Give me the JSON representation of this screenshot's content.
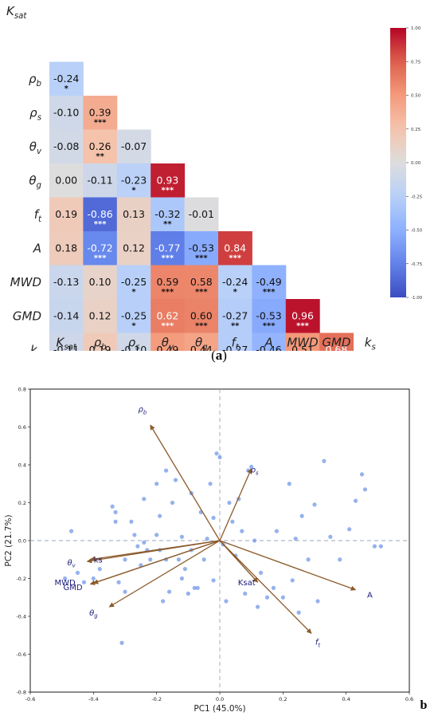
{
  "chart_data": [
    {
      "type": "heatmap",
      "panel_label": "(a)",
      "variables": [
        "Ksat",
        "ρb",
        "ρs",
        "θv",
        "θg",
        "ft",
        "A",
        "MWD",
        "GMD",
        "ks"
      ],
      "labels": [
        {
          "base": "K",
          "sub": "sat"
        },
        {
          "base": "ρ",
          "sub": "b"
        },
        {
          "base": "ρ",
          "sub": "s"
        },
        {
          "base": "θ",
          "sub": "v"
        },
        {
          "base": "θ",
          "sub": "g"
        },
        {
          "base": "f",
          "sub": "t"
        },
        {
          "base": "A",
          "sub": ""
        },
        {
          "base": "MWD",
          "sub": ""
        },
        {
          "base": "GMD",
          "sub": ""
        },
        {
          "base": "k",
          "sub": "s"
        }
      ],
      "lower_triangle": [
        [],
        [
          -0.24
        ],
        [
          -0.1,
          0.39
        ],
        [
          -0.08,
          0.26,
          -0.07
        ],
        [
          -0.0,
          -0.11,
          -0.23,
          0.93
        ],
        [
          0.19,
          -0.86,
          0.13,
          -0.32,
          -0.01
        ],
        [
          0.18,
          -0.72,
          0.12,
          -0.77,
          -0.53,
          0.84
        ],
        [
          -0.13,
          0.1,
          -0.25,
          0.59,
          0.58,
          -0.24,
          -0.49
        ],
        [
          -0.14,
          0.12,
          -0.25,
          0.62,
          0.6,
          -0.27,
          -0.53,
          0.96
        ],
        [
          -0.11,
          0.19,
          -0.1,
          0.49,
          0.44,
          -0.27,
          -0.46,
          0.51,
          0.68
        ]
      ],
      "significance": [
        [],
        [
          "*"
        ],
        [
          "",
          "***"
        ],
        [
          "",
          "**",
          ""
        ],
        [
          "",
          "",
          "*",
          "***"
        ],
        [
          "",
          "***",
          "",
          "**",
          ""
        ],
        [
          "",
          "***",
          "",
          "***",
          "***",
          "***"
        ],
        [
          "",
          "",
          "*",
          "***",
          "***",
          "*",
          "***"
        ],
        [
          "",
          "",
          "*",
          "***",
          "***",
          "**",
          "***",
          "***"
        ],
        [
          "",
          "",
          "",
          "***",
          "***",
          "**",
          "***",
          "***",
          "***"
        ]
      ],
      "colorbar": {
        "range": [
          -1.0,
          1.0
        ],
        "ticks": [
          "1.00",
          "0.75",
          "0.50",
          "0.25",
          "0.00",
          "-0.25",
          "-0.50",
          "-0.75",
          "-1.00"
        ],
        "colormap": "coolwarm",
        "low_color": "#3b4cc0",
        "mid_color": "#dddddd",
        "high_color": "#b40426"
      }
    },
    {
      "type": "scatter",
      "subtype": "PCA biplot",
      "panel_label": "(b)",
      "xlabel": "PC1 (45.0%)",
      "ylabel": "PC2 (21.7%)",
      "xlim": [
        -0.6,
        0.6
      ],
      "ylim": [
        -0.8,
        0.8
      ],
      "xticks": [
        "-0.6",
        "-0.4",
        "-0.2",
        "0.0",
        "0.2",
        "0.4",
        "0.6"
      ],
      "yticks": [
        "0.8",
        "0.6",
        "0.4",
        "0.2",
        "0.0",
        "-0.2",
        "-0.4",
        "-0.6",
        "-0.8"
      ],
      "point_color": "#7b9fe8",
      "arrow_color": "#8b5a2b",
      "label_color": "#1a1a7a",
      "loadings": [
        {
          "name": "ρb",
          "base": "ρ",
          "sub": "b",
          "x": -0.22,
          "y": 0.61,
          "lx": -0.245,
          "ly": 0.68,
          "style": "italic"
        },
        {
          "name": "ρs",
          "base": "ρ",
          "sub": "s",
          "x": 0.1,
          "y": 0.38,
          "lx": 0.11,
          "ly": 0.36,
          "style": "italic"
        },
        {
          "name": "θv",
          "base": "θ",
          "sub": "v",
          "x": -0.42,
          "y": -0.11,
          "lx": -0.47,
          "ly": -0.13,
          "style": "italic"
        },
        {
          "name": "ks",
          "base": "ks",
          "sub": "",
          "x": -0.41,
          "y": -0.1,
          "lx": -0.385,
          "ly": -0.115,
          "style": "normal"
        },
        {
          "name": "MWD",
          "base": "MWD",
          "sub": "",
          "x": -0.41,
          "y": -0.23,
          "lx": -0.49,
          "ly": -0.235,
          "style": "normal"
        },
        {
          "name": "GMD",
          "base": "GMD",
          "sub": "",
          "x": -0.4,
          "y": -0.225,
          "lx": -0.465,
          "ly": -0.26,
          "style": "normal"
        },
        {
          "name": "θg",
          "base": "θ",
          "sub": "g",
          "x": -0.35,
          "y": -0.35,
          "lx": -0.4,
          "ly": -0.395,
          "style": "italic"
        },
        {
          "name": "Ksat",
          "base": "Ksat",
          "sub": "",
          "x": 0.12,
          "y": -0.22,
          "lx": 0.085,
          "ly": -0.235,
          "style": "normal"
        },
        {
          "name": "A",
          "base": "A",
          "sub": "",
          "x": 0.43,
          "y": -0.26,
          "lx": 0.475,
          "ly": -0.3,
          "style": "normal"
        },
        {
          "name": "ft",
          "base": "f",
          "sub": "t",
          "x": 0.29,
          "y": -0.49,
          "lx": 0.31,
          "ly": -0.55,
          "style": "italic"
        }
      ],
      "scores": [
        [
          -0.47,
          0.05
        ],
        [
          -0.49,
          -0.2
        ],
        [
          -0.45,
          -0.17
        ],
        [
          -0.43,
          -0.22
        ],
        [
          -0.4,
          -0.2
        ],
        [
          -0.38,
          -0.15
        ],
        [
          -0.34,
          0.18
        ],
        [
          -0.33,
          0.15
        ],
        [
          -0.33,
          0.1
        ],
        [
          -0.32,
          -0.22
        ],
        [
          -0.31,
          -0.54
        ],
        [
          -0.3,
          -0.1
        ],
        [
          -0.3,
          -0.27
        ],
        [
          -0.28,
          0.1
        ],
        [
          -0.27,
          0.03
        ],
        [
          -0.26,
          -0.03
        ],
        [
          -0.25,
          -0.13
        ],
        [
          -0.24,
          -0.01
        ],
        [
          -0.24,
          0.22
        ],
        [
          -0.23,
          -0.05
        ],
        [
          -0.22,
          -0.1
        ],
        [
          -0.2,
          0.3
        ],
        [
          -0.2,
          0.03
        ],
        [
          -0.19,
          0.13
        ],
        [
          -0.19,
          -0.05
        ],
        [
          -0.18,
          -0.32
        ],
        [
          -0.17,
          -0.1
        ],
        [
          -0.17,
          0.37
        ],
        [
          -0.16,
          -0.27
        ],
        [
          -0.15,
          0.2
        ],
        [
          -0.14,
          0.32
        ],
        [
          -0.13,
          -0.1
        ],
        [
          -0.12,
          0.02
        ],
        [
          -0.12,
          -0.2
        ],
        [
          -0.11,
          -0.15
        ],
        [
          -0.1,
          -0.28
        ],
        [
          -0.09,
          0.25
        ],
        [
          -0.09,
          -0.05
        ],
        [
          -0.08,
          -0.25
        ],
        [
          -0.07,
          -0.25
        ],
        [
          -0.06,
          0.15
        ],
        [
          -0.05,
          -0.1
        ],
        [
          -0.04,
          0.01
        ],
        [
          -0.03,
          0.3
        ],
        [
          -0.02,
          -0.21
        ],
        [
          -0.02,
          0.12
        ],
        [
          -0.01,
          0.46
        ],
        [
          0.0,
          0.44
        ],
        [
          0.01,
          -0.02
        ],
        [
          0.02,
          -0.32
        ],
        [
          0.03,
          0.2
        ],
        [
          0.04,
          0.1
        ],
        [
          0.05,
          -0.08
        ],
        [
          0.06,
          0.22
        ],
        [
          0.07,
          0.05
        ],
        [
          0.08,
          -0.28
        ],
        [
          0.09,
          0.37
        ],
        [
          0.1,
          0.39
        ],
        [
          0.11,
          0.0
        ],
        [
          0.12,
          -0.35
        ],
        [
          0.13,
          -0.17
        ],
        [
          0.15,
          -0.3
        ],
        [
          0.17,
          -0.25
        ],
        [
          0.18,
          0.05
        ],
        [
          0.2,
          -0.3
        ],
        [
          0.22,
          0.3
        ],
        [
          0.23,
          -0.21
        ],
        [
          0.24,
          0.01
        ],
        [
          0.25,
          -0.38
        ],
        [
          0.26,
          0.13
        ],
        [
          0.28,
          -0.1
        ],
        [
          0.3,
          0.19
        ],
        [
          0.31,
          -0.32
        ],
        [
          0.33,
          0.42
        ],
        [
          0.35,
          0.02
        ],
        [
          0.38,
          -0.1
        ],
        [
          0.41,
          0.06
        ],
        [
          0.43,
          0.21
        ],
        [
          0.45,
          0.35
        ],
        [
          0.46,
          0.27
        ],
        [
          0.49,
          -0.03
        ],
        [
          0.51,
          -0.03
        ]
      ]
    }
  ]
}
